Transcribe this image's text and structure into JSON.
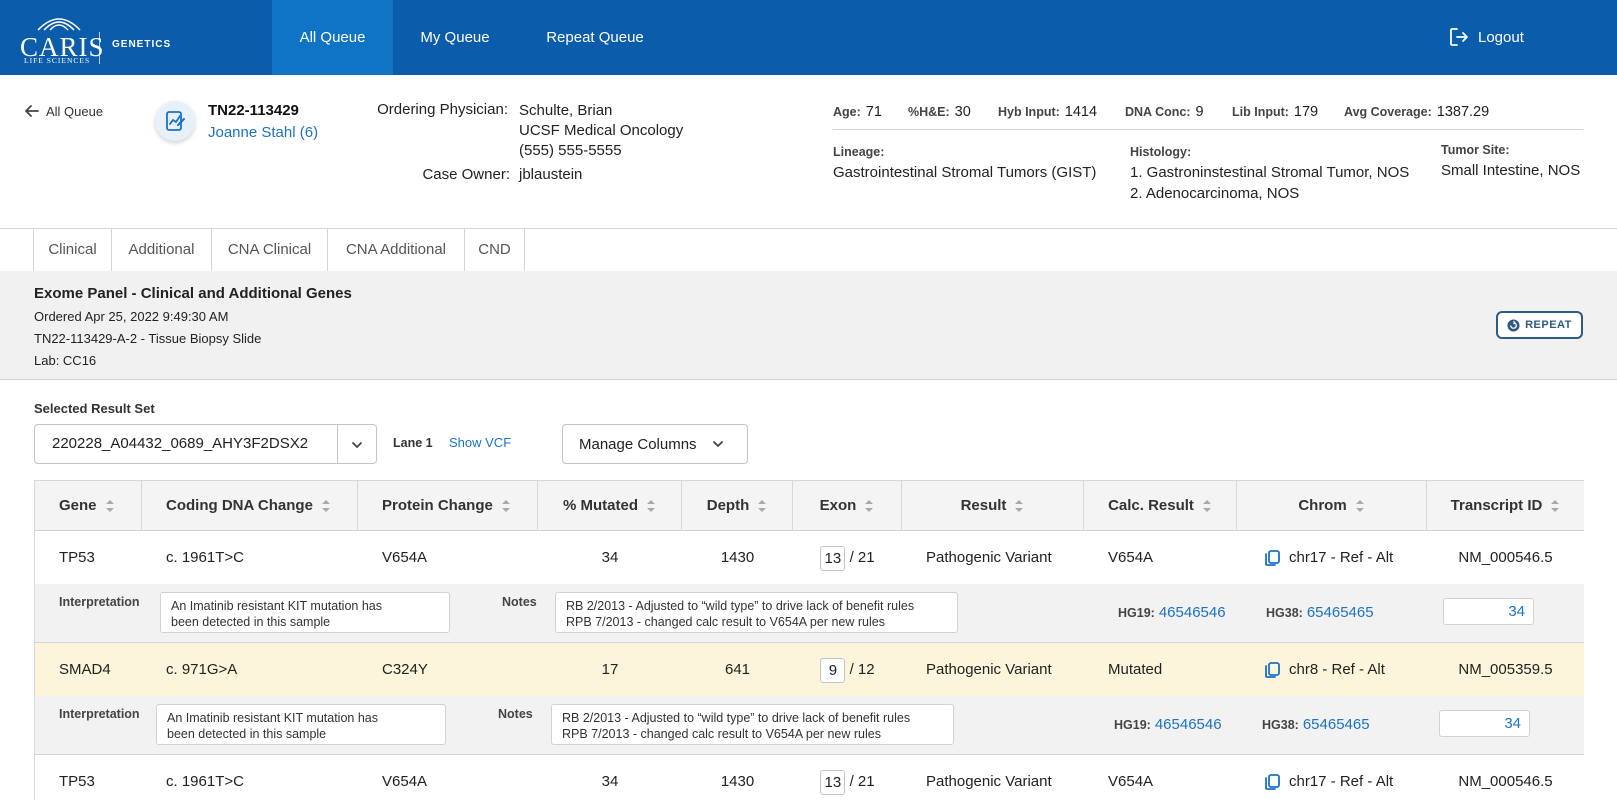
{
  "app": {
    "logo_main": "CARIS",
    "logo_sub": "LIFE SCIENCES",
    "logo_section": "GENETICS"
  },
  "nav": {
    "tabs": [
      {
        "label": "All Queue",
        "active": true
      },
      {
        "label": "My Queue",
        "active": false
      },
      {
        "label": "Repeat Queue",
        "active": false
      }
    ],
    "logout": "Logout"
  },
  "case": {
    "back_label": "All Queue",
    "case_id": "TN22-113429",
    "patient": "Joanne Stahl (6)",
    "ordering_physician_label": "Ordering Physician:",
    "physician_name": "Schulte, Brian",
    "physician_org": "UCSF Medical Oncology",
    "physician_phone": "(555) 555-5555",
    "case_owner_label": "Case Owner:",
    "case_owner": "jblaustein"
  },
  "stats": {
    "age_label": "Age:",
    "age": "71",
    "he_label": "%H&E:",
    "he": "30",
    "hyb_label": "Hyb Input:",
    "hyb": "1414",
    "dna_label": "DNA Conc:",
    "dna": "9",
    "lib_label": "Lib Input:",
    "lib": "179",
    "cov_label": "Avg Coverage:",
    "cov": "1387.29",
    "lineage_label": "Lineage:",
    "lineage": "Gastrointestinal Stromal Tumors (GIST)",
    "histology_label": "Histology:",
    "histology_1": "1. Gastroninstestinal Stromal Tumor, NOS",
    "histology_2": "2. Adenocarcinoma, NOS",
    "tumor_site_label": "Tumor Site:",
    "tumor_site": "Small Intestine, NOS"
  },
  "subtabs": [
    "Clinical",
    "Additional",
    "CNA Clinical",
    "CNA Additional",
    "CND"
  ],
  "panel": {
    "title": "Exome Panel - Clinical and Additional Genes",
    "ordered": "Ordered Apr 25, 2022 9:49:30 AM",
    "specimen": "TN22-113429-A-2 - Tissue Biopsy Slide",
    "lab": "Lab: CC16",
    "repeat_label": "REPEAT"
  },
  "controls": {
    "result_set_label": "Selected Result Set",
    "result_set_value": "220228_A04432_0689_AHY3F2DSX2",
    "lane": "Lane 1",
    "show_vcf": "Show VCF",
    "manage_columns": "Manage Columns"
  },
  "table": {
    "columns": [
      "Gene",
      "Coding DNA Change",
      "Protein Change",
      "% Mutated",
      "Depth",
      "Exon",
      "Result",
      "Calc. Result",
      "Chrom",
      "Transcript ID"
    ],
    "rows": [
      {
        "gene": "TP53",
        "cdna": "c. 1961T>C",
        "protein": "V654A",
        "mutated": "34",
        "depth": "1430",
        "exon": "13",
        "exon_total": "/ 21",
        "result": "Pathogenic Variant",
        "calc": "V654A",
        "chrom": "chr17 - Ref - Alt",
        "transcript": "NM_000546.5",
        "highlight": false,
        "detail": {
          "interpretation_label": "Interpretation",
          "interpretation_1": "An Imatinib resistant KIT mutation has",
          "interpretation_2": "been detected in this sample",
          "notes_label": "Notes",
          "notes_1": "RB 2/2013 - Adjusted to “wild type” to drive lack of benefit rules",
          "notes_2": "RPB 7/2013 - changed calc result to V654A per new rules",
          "hg19_label": "HG19:",
          "hg19": "46546546",
          "hg38_label": "HG38:",
          "hg38": "65465465",
          "value": "34"
        }
      },
      {
        "gene": "SMAD4",
        "cdna": "c. 971G>A",
        "protein": "C324Y",
        "mutated": "17",
        "depth": "641",
        "exon": "9",
        "exon_total": "/ 12",
        "result": "Pathogenic Variant",
        "calc": "Mutated",
        "chrom": "chr8 - Ref - Alt",
        "transcript": "NM_005359.5",
        "highlight": true,
        "detail": {
          "interpretation_label": "Interpretation",
          "interpretation_1": "An Imatinib resistant KIT mutation has",
          "interpretation_2": "been detected in this sample",
          "notes_label": "Notes",
          "notes_1": "RB 2/2013 - Adjusted to “wild type” to drive lack of benefit rules",
          "notes_2": "RPB 7/2013 - changed calc result to V654A per new rules",
          "hg19_label": "HG19:",
          "hg19": "46546546",
          "hg38_label": "HG38:",
          "hg38": "65465465",
          "value": "34"
        }
      },
      {
        "gene": "TP53",
        "cdna": "c. 1961T>C",
        "protein": "V654A",
        "mutated": "34",
        "depth": "1430",
        "exon": "13",
        "exon_total": "/ 21",
        "result": "Pathogenic Variant",
        "calc": "V654A",
        "chrom": "chr17 - Ref - Alt",
        "transcript": "NM_000546.5",
        "highlight": false
      }
    ]
  },
  "colors": {
    "nav_bg": "#0b5cab",
    "nav_active": "#0f74c4",
    "link": "#1a73c7",
    "highlight_row": "#fcf5db"
  },
  "icons": {
    "back": "arrow-left-icon",
    "logout": "logout-icon",
    "case": "chart-document-icon",
    "repeat": "repeat-icon",
    "dropdown": "chevron-down-icon",
    "sort": "sort-icon",
    "copy": "copy-icon"
  }
}
